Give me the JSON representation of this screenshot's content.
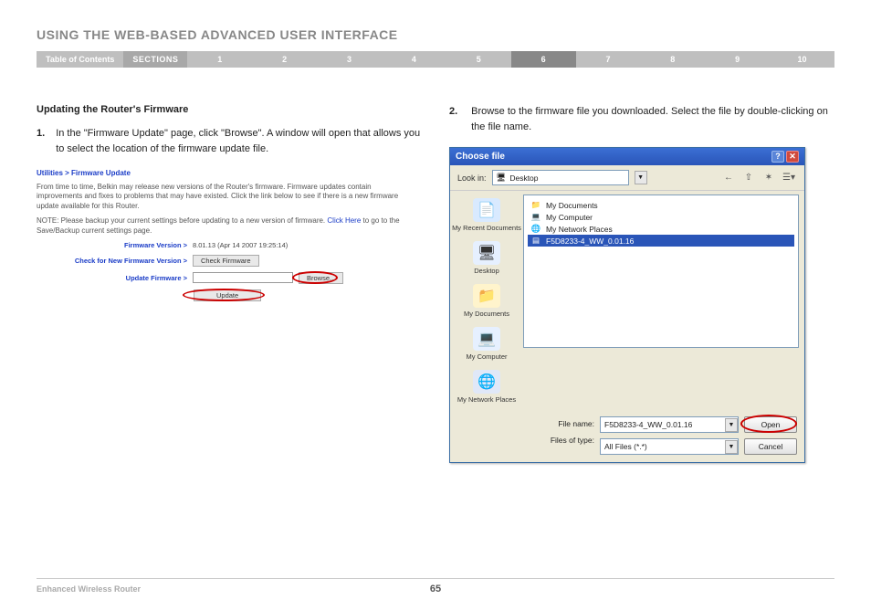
{
  "page": {
    "title": "USING THE WEB-BASED ADVANCED USER INTERFACE",
    "toc_label": "Table of Contents",
    "sections_label": "SECTIONS",
    "section_numbers": [
      "1",
      "2",
      "3",
      "4",
      "5",
      "6",
      "7",
      "8",
      "9",
      "10"
    ],
    "active_section_index": 5,
    "footer_left": "Enhanced Wireless Router",
    "page_number": "65"
  },
  "colors": {
    "title_gray": "#888888",
    "nav_bg": "#bfbfbf",
    "nav_sections_bg": "#a8a8a8",
    "nav_active_bg": "#888888",
    "link_blue": "#1a3cc7",
    "highlight_red": "#cc0000",
    "xp_title_start": "#3b6fd4",
    "xp_title_end": "#2a55b8",
    "xp_bg": "#ece9d8",
    "field_border": "#7f9db9",
    "selection_bg": "#2a55b8"
  },
  "left": {
    "subheading": "Updating the Router's Firmware",
    "step_num": "1.",
    "step_text": "In the \"Firmware Update\" page, click \"Browse\". A window will open that allows you to select the location of the firmware update file.",
    "fw": {
      "breadcrumb": "Utilities > Firmware Update",
      "desc1": "From time to time, Belkin may release new versions of the Router's firmware. Firmware updates contain improvements and fixes to problems that may have existed. Click the link below to see if there is a new firmware update available for this Router.",
      "desc2a": "NOTE: Please backup your current settings before updating to a new version of firmware.",
      "desc2_link": "Click Here",
      "desc2b": " to go to the Save/Backup current settings page.",
      "row1_label": "Firmware Version >",
      "row1_value": "8.01.13 (Apr 14 2007 19:25:14)",
      "row2_label": "Check for New Firmware Version >",
      "row2_btn": "Check Firmware",
      "row3_label": "Update Firmware >",
      "row3_btn": "Browse...",
      "update_btn": "Update"
    }
  },
  "right": {
    "step_num": "2.",
    "step_text": "Browse to the firmware file you downloaded. Select the file by double-clicking on the file name.",
    "dialog": {
      "title": "Choose file",
      "help_glyph": "?",
      "close_glyph": "✕",
      "lookin_label": "Look in:",
      "lookin_value": "Desktop",
      "toolbar_icons": [
        "←",
        "⇧",
        "✶",
        "☰▾"
      ],
      "places": [
        {
          "label": "My Recent Documents",
          "icon": "📄",
          "tint": "#d9eaff"
        },
        {
          "label": "Desktop",
          "icon": "🖥",
          "tint": "#e6f0ff"
        },
        {
          "label": "My Documents",
          "icon": "📁",
          "tint": "#fff4cc"
        },
        {
          "label": "My Computer",
          "icon": "💻",
          "tint": "#e6f0ff"
        },
        {
          "label": "My Network Places",
          "icon": "🌐",
          "tint": "#e0e8f8"
        }
      ],
      "files": [
        {
          "icon": "📁",
          "label": "My Documents",
          "selected": false
        },
        {
          "icon": "💻",
          "label": "My Computer",
          "selected": false
        },
        {
          "icon": "🌐",
          "label": "My Network Places",
          "selected": false
        },
        {
          "icon": "▤",
          "label": "F5D8233-4_WW_0.01.16",
          "selected": true
        }
      ],
      "filename_label": "File name:",
      "filename_value": "F5D8233-4_WW_0.01.16",
      "filetype_label": "Files of type:",
      "filetype_value": "All Files (*.*)",
      "open_btn": "Open",
      "cancel_btn": "Cancel"
    }
  }
}
